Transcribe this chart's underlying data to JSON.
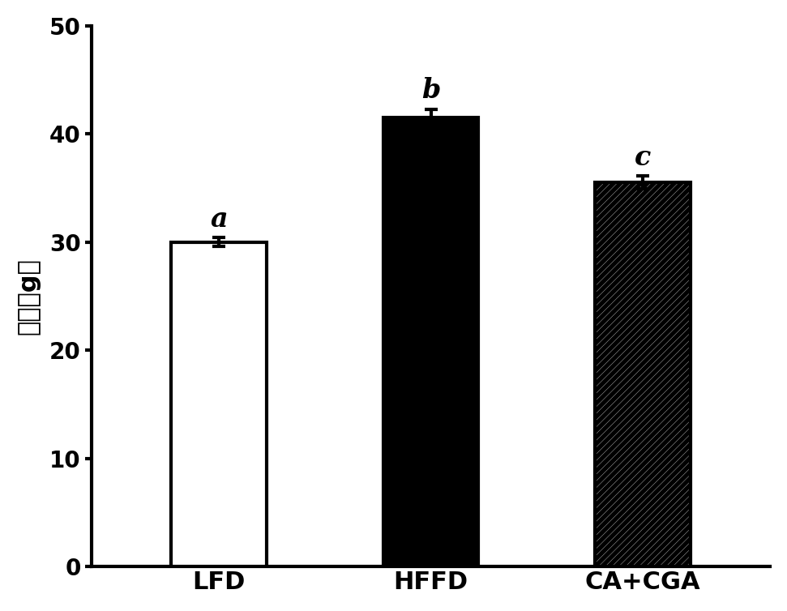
{
  "categories": [
    "LFD",
    "HFFD",
    "CA+CGA"
  ],
  "values": [
    30.0,
    41.5,
    35.5
  ],
  "errors": [
    0.4,
    0.8,
    0.6
  ],
  "bar_colors": [
    "#ffffff",
    "#000000",
    "#ffffff"
  ],
  "bar_edgecolors": [
    "#000000",
    "#000000",
    "#000000"
  ],
  "bar_patterns": [
    "",
    "",
    "////"
  ],
  "letters": [
    "a",
    "b",
    "c"
  ],
  "ylabel": "体重（g）",
  "ylim": [
    0,
    50
  ],
  "yticks": [
    0,
    10,
    20,
    30,
    40,
    50
  ],
  "xlabel_fontsize": 22,
  "ylabel_fontsize": 22,
  "tick_fontsize": 20,
  "letter_fontsize": 24,
  "bar_width": 0.45,
  "background_color": "#ffffff",
  "linewidth": 3.0,
  "capsize": 6,
  "hatch_linewidth": 4.0
}
